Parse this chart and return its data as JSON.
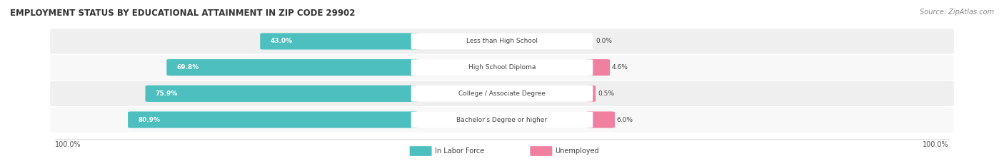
{
  "title": "EMPLOYMENT STATUS BY EDUCATIONAL ATTAINMENT IN ZIP CODE 29902",
  "source": "Source: ZipAtlas.com",
  "categories": [
    "Less than High School",
    "High School Diploma",
    "College / Associate Degree",
    "Bachelor's Degree or higher"
  ],
  "in_labor_force": [
    43.0,
    69.8,
    75.9,
    80.9
  ],
  "unemployed": [
    0.0,
    4.6,
    0.5,
    6.0
  ],
  "color_labor": "#4DBFBF",
  "color_unemployed": "#F080A0",
  "axis_label_left": "100.0%",
  "axis_label_right": "100.0%",
  "legend_labor": "In Labor Force",
  "legend_unemployed": "Unemployed",
  "max_val": 100.0
}
